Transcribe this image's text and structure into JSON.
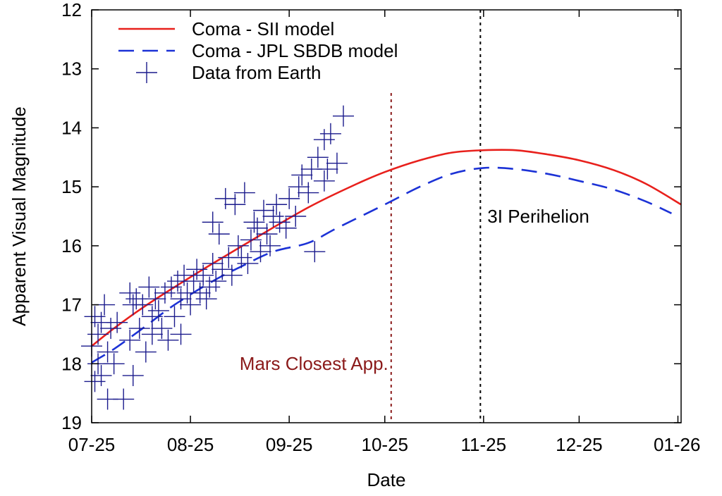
{
  "chart_data": {
    "type": "scatter",
    "xlabel": "Date",
    "ylabel": "Apparent Visual Magnitude",
    "x_ticks": [
      "07-25",
      "08-25",
      "09-25",
      "10-25",
      "11-25",
      "12-25",
      "01-26"
    ],
    "x_range": [
      "2025-07-25",
      "2026-01-26"
    ],
    "y_range": [
      12,
      19
    ],
    "y_reversed": true,
    "y_ticks": [
      12,
      13,
      14,
      15,
      16,
      17,
      18,
      19
    ],
    "grid": false,
    "legend_position": "top-left",
    "colors": {
      "sii_model": "#e8201c",
      "jpl_model": "#1c32d6",
      "data_points": "#1a1a8c",
      "mars_line": "#8b1a1a",
      "perihelion_line": "#000000"
    },
    "series": [
      {
        "name": "Coma - SII model",
        "style": "solid-line",
        "x": [
          "07-25",
          "08-01",
          "08-10",
          "08-20",
          "09-01",
          "09-15",
          "10-01",
          "10-15",
          "10-25",
          "11-05",
          "11-15",
          "11-25",
          "12-05",
          "12-15",
          "12-25",
          "01-05",
          "01-15",
          "01-26"
        ],
        "y": [
          17.7,
          17.4,
          17.05,
          16.7,
          16.3,
          15.85,
          15.35,
          14.98,
          14.75,
          14.55,
          14.42,
          14.38,
          14.38,
          14.45,
          14.55,
          14.72,
          14.95,
          15.3
        ]
      },
      {
        "name": "Coma - JPL SBDB model",
        "style": "dashed-line",
        "x": [
          "07-25",
          "08-01",
          "08-10",
          "08-20",
          "09-01",
          "09-10",
          "09-20",
          "10-01",
          "10-10",
          "10-25",
          "11-05",
          "11-15",
          "11-25",
          "12-05",
          "12-15",
          "12-25",
          "01-05",
          "01-15",
          "01-23"
        ],
        "y": [
          17.98,
          17.75,
          17.4,
          17.0,
          16.6,
          16.35,
          16.1,
          15.95,
          15.7,
          15.3,
          15.0,
          14.78,
          14.68,
          14.7,
          14.78,
          14.9,
          15.05,
          15.25,
          15.45
        ]
      },
      {
        "name": "Data from Earth",
        "style": "plus-markers",
        "x": [
          "07-25",
          "07-26",
          "07-26",
          "07-27",
          "07-27",
          "07-28",
          "07-28",
          "07-29",
          "07-30",
          "07-30",
          "07-31",
          "08-01",
          "08-02",
          "08-04",
          "08-06",
          "08-06",
          "08-07",
          "08-07",
          "08-08",
          "08-09",
          "08-10",
          "08-11",
          "08-12",
          "08-13",
          "08-13",
          "08-14",
          "08-15",
          "08-16",
          "08-17",
          "08-18",
          "08-19",
          "08-20",
          "08-21",
          "08-22",
          "08-22",
          "08-23",
          "08-24",
          "08-25",
          "08-26",
          "08-27",
          "08-28",
          "08-29",
          "08-30",
          "08-31",
          "09-01",
          "09-01",
          "09-02",
          "09-03",
          "09-04",
          "09-05",
          "09-06",
          "09-07",
          "09-08",
          "09-09",
          "09-10",
          "09-11",
          "09-12",
          "09-13",
          "09-14",
          "09-15",
          "09-16",
          "09-17",
          "09-18",
          "09-19",
          "09-20",
          "09-21",
          "09-22",
          "09-24",
          "09-25",
          "09-27",
          "09-28",
          "09-29",
          "10-01",
          "10-02",
          "10-03",
          "10-04",
          "10-06",
          "10-06",
          "10-07",
          "10-08",
          "10-10",
          "10-12"
        ],
        "y": [
          17.7,
          17.2,
          18.3,
          17.5,
          18.0,
          17.3,
          18.2,
          17.0,
          18.6,
          17.8,
          17.4,
          18.0,
          17.3,
          18.6,
          16.8,
          17.6,
          17.0,
          18.2,
          16.9,
          17.4,
          17.0,
          17.8,
          16.7,
          17.2,
          17.5,
          16.9,
          17.1,
          17.4,
          16.8,
          17.6,
          16.7,
          17.2,
          16.6,
          16.9,
          17.5,
          16.5,
          16.8,
          17.0,
          16.6,
          16.4,
          16.8,
          16.5,
          16.9,
          16.7,
          16.3,
          15.6,
          16.6,
          15.8,
          16.4,
          15.2,
          16.2,
          16.5,
          15.3,
          16.0,
          16.2,
          15.1,
          16.3,
          15.9,
          15.6,
          15.7,
          16.1,
          15.4,
          15.8,
          16.0,
          15.5,
          15.3,
          15.6,
          15.7,
          15.2,
          15.5,
          15.0,
          14.8,
          15.1,
          14.7,
          16.1,
          14.5,
          14.2,
          14.9,
          14.7,
          14.1,
          14.6,
          13.8
        ]
      }
    ],
    "annotations": [
      {
        "text": "Mars Closest App.",
        "x": "10-27",
        "vline": true,
        "color": "#8b1a1a"
      },
      {
        "text": "3I Perihelion",
        "x": "11-24",
        "vline": true,
        "color": "#000000"
      }
    ]
  }
}
